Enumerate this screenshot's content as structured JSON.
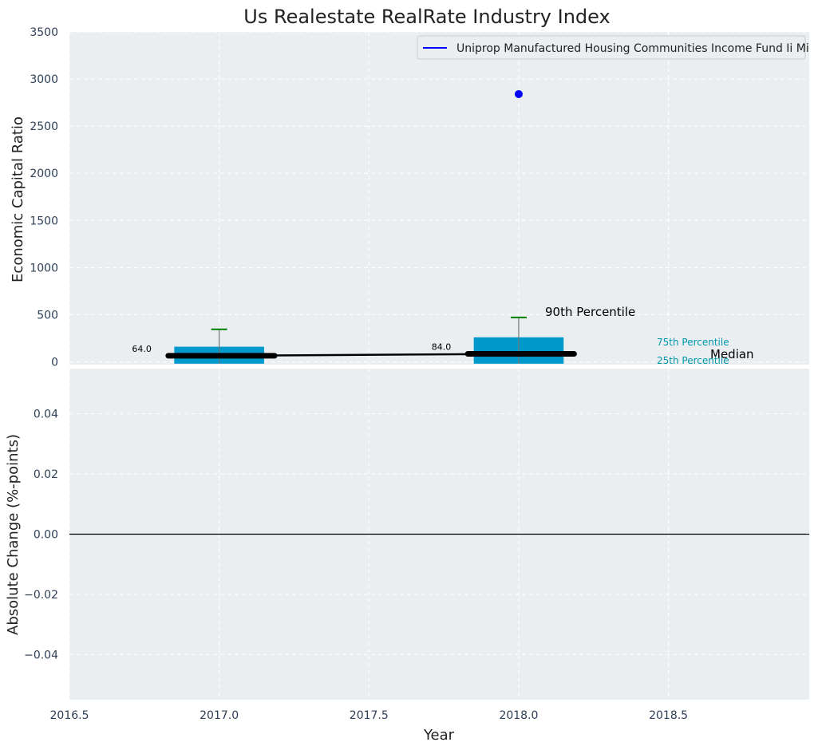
{
  "chart_data": [
    {
      "type": "bar",
      "title": "Us Realestate RealRate Industry Index",
      "ylabel": "Economic Capital Ratio",
      "ylim": [
        -30,
        3500
      ],
      "yticks": [
        0,
        500,
        1000,
        1500,
        2000,
        2500,
        3000,
        3500
      ],
      "grid": true,
      "legend": {
        "position": "top-right",
        "entries": [
          "Uniprop Manufactured Housing Communities Income Fund Ii Mi"
        ]
      },
      "x": [
        2017.0,
        2018.0
      ],
      "percentile_25": [
        -20,
        -20
      ],
      "percentile_75": [
        160,
        260
      ],
      "percentile_90": [
        345,
        470
      ],
      "median": [
        64.0,
        84.0
      ],
      "median_labels": [
        "64.0",
        "84.0"
      ],
      "company_series": {
        "name": "Uniprop Manufactured Housing Communities Income Fund Ii Mi",
        "x": [
          2018.0
        ],
        "y": [
          2840
        ]
      },
      "annotations": {
        "p90": "90th Percentile",
        "p75": "75th Percentile",
        "p25": "25th Percentile",
        "median": "Median"
      }
    },
    {
      "type": "line",
      "ylabel": "Absolute Change (%-points)",
      "xlabel": "Year",
      "ylim": [
        -0.055,
        0.055
      ],
      "yticks": [
        -0.04,
        -0.02,
        0.0,
        0.02,
        0.04
      ],
      "ytick_labels": [
        "−0.04",
        "−0.02",
        "0.00",
        "0.02",
        "0.04"
      ],
      "xlim": [
        2016.5,
        2018.97
      ],
      "xticks": [
        2016.5,
        2017.0,
        2017.5,
        2018.0,
        2018.5
      ],
      "xtick_labels": [
        "2016.5",
        "2017.0",
        "2017.5",
        "2018.0",
        "2018.5"
      ],
      "reference_line": 0.0,
      "grid": true
    }
  ],
  "colors": {
    "plot_bg": "#EAEEF0",
    "grid": "#FFFFFF",
    "bar": "#0099CC",
    "whisker": "#008000",
    "median_line": "#000000",
    "company_point": "#0000FF",
    "tick_text": "#2E4057",
    "percentile_text": "#0099AA"
  }
}
